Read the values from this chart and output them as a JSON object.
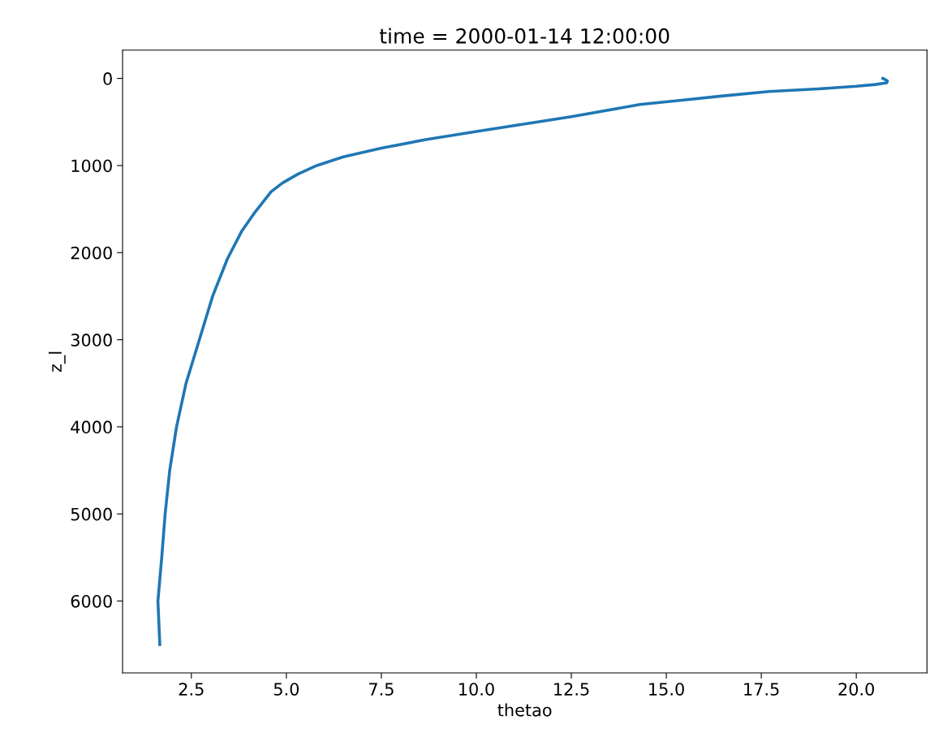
{
  "chart_data": {
    "type": "line",
    "title": "time = 2000-01-14 12:00:00",
    "xlabel": "thetao",
    "ylabel": "z_l",
    "x": [
      20.7,
      20.75,
      20.82,
      20.8,
      20.5,
      20.0,
      19.0,
      17.7,
      16.5,
      15.4,
      14.3,
      12.5,
      10.0,
      8.7,
      7.5,
      6.5,
      5.8,
      5.3,
      4.9,
      4.6,
      4.15,
      3.83,
      3.45,
      3.06,
      2.36,
      2.11,
      1.93,
      1.81,
      1.72,
      1.62,
      1.67
    ],
    "series": [
      {
        "color": "#1f77b4",
        "values": [
          0,
          10,
          30,
          50,
          70,
          90,
          120,
          150,
          200,
          250,
          300,
          440,
          610,
          700,
          800,
          900,
          1000,
          1100,
          1200,
          1300,
          1550,
          1750,
          2070,
          2500,
          3500,
          4000,
          4500,
          5000,
          5500,
          6000,
          6500
        ]
      }
    ],
    "xlim": [
      0.69,
      21.86
    ],
    "ylim": [
      6825,
      -325
    ],
    "xticks": [
      2.5,
      {
        "value": 5,
        "label": "5.0"
      },
      7.5,
      {
        "value": 10,
        "label": "10.0"
      },
      12.5,
      {
        "value": 15,
        "label": "15.0"
      },
      17.5,
      {
        "value": 20,
        "label": "20.0"
      }
    ],
    "yticks": [
      0,
      1000,
      2000,
      3000,
      4000,
      5000,
      6000
    ],
    "grid": false,
    "legend": false,
    "marker": "none",
    "line_style": "solid"
  }
}
